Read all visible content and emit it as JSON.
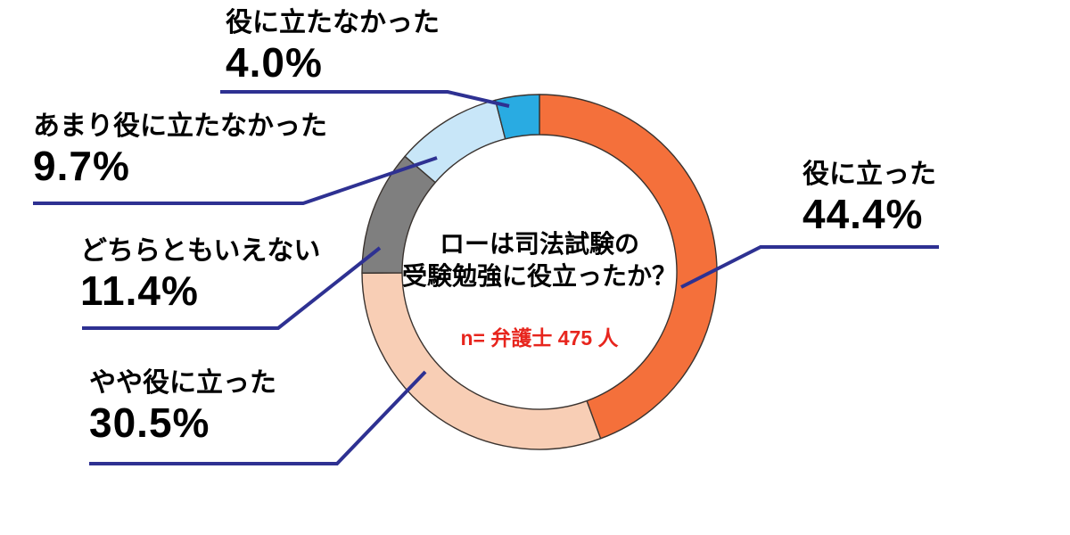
{
  "chart_data": {
    "type": "pie",
    "subtype": "donut",
    "question_line1": "ローは司法試験の",
    "question_line2": "受験勉強に役立ったか？",
    "sample_note": "n= 弁護士 475 人",
    "unit": "%",
    "start_angle_deg": 0,
    "direction": "clockwise",
    "legend_position": "outside-callouts",
    "segments": [
      {
        "label": "役に立った",
        "value": 44.4,
        "display": "44.4%",
        "color": "#F4703B"
      },
      {
        "label": "やや役に立った",
        "value": 30.5,
        "display": "30.5%",
        "color": "#F8CEB5"
      },
      {
        "label": "どちらともいえない",
        "value": 11.4,
        "display": "11.4%",
        "color": "#7F7F7F"
      },
      {
        "label": "あまり役に立たなかった",
        "value": 9.7,
        "display": "9.7%",
        "color": "#C8E6F8"
      },
      {
        "label": "役に立たなかった",
        "value": 4.0,
        "display": "4.0%",
        "color": "#29ABE2"
      }
    ]
  },
  "colors": {
    "background": "#FFFFFF",
    "text": "#000000",
    "leader_line": "#2E3192",
    "sample_note_red": "#E7251D",
    "segment_outline": "#3A332F"
  }
}
